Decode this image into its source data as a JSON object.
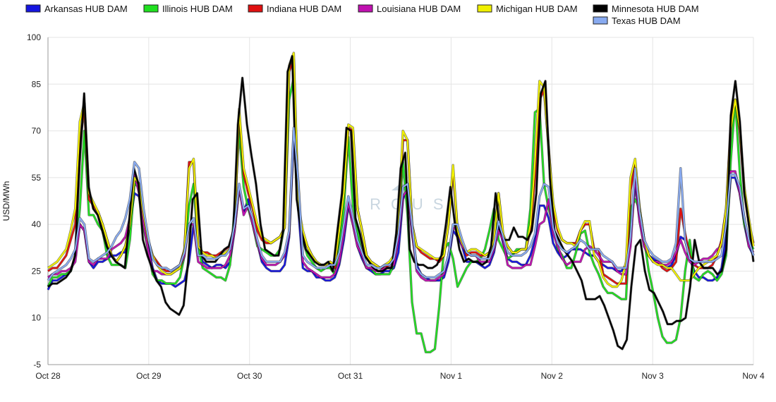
{
  "chart_data": {
    "type": "line",
    "title": "",
    "xlabel": "",
    "ylabel": "USD/MWh",
    "ylim": [
      -5,
      100
    ],
    "yticks": [
      -5,
      10,
      25,
      40,
      55,
      70,
      85,
      100
    ],
    "xticks": [
      "Oct 28",
      "Oct 29",
      "Oct 30",
      "Oct 31",
      "Nov 1",
      "Nov 2",
      "Nov 3",
      "Nov 4"
    ],
    "grid": true,
    "legend_position": "top",
    "watermark": "ARCUS",
    "series": [
      {
        "name": "Arkansas HUB DAM",
        "color": "#1515e0",
        "values": [
          19,
          22,
          22,
          23,
          24,
          25,
          30,
          40,
          38,
          28,
          26,
          28,
          28,
          29,
          30,
          30,
          31,
          31,
          40,
          50,
          49,
          40,
          33,
          26,
          22,
          21,
          21,
          21,
          20,
          21,
          22,
          28,
          40,
          32,
          28,
          27,
          26,
          27,
          27,
          26,
          28,
          38,
          52,
          44,
          48,
          40,
          34,
          28,
          26,
          25,
          25,
          25,
          27,
          36,
          68,
          45,
          26,
          25,
          25,
          23,
          23,
          22,
          22,
          23,
          27,
          35,
          46,
          40,
          33,
          29,
          26,
          25,
          24,
          24,
          25,
          25,
          26,
          31,
          48,
          52,
          37,
          27,
          24,
          23,
          22,
          22,
          22,
          23,
          28,
          38,
          36,
          33,
          28,
          28,
          28,
          27,
          26,
          27,
          31,
          40,
          34,
          29,
          28,
          28,
          27,
          27,
          30,
          35,
          46,
          46,
          42,
          34,
          31,
          29,
          30,
          32,
          32,
          32,
          31,
          30,
          30,
          28,
          27,
          26,
          26,
          25,
          25,
          27,
          37,
          53,
          41,
          33,
          30,
          29,
          28,
          27,
          26,
          27,
          30,
          36,
          35,
          29,
          25,
          23,
          23,
          22,
          22,
          23,
          26,
          36,
          55,
          55,
          50,
          40,
          33,
          30
        ]
      },
      {
        "name": "Illinois HUB DAM",
        "color": "#20e020",
        "values": [
          20,
          23,
          23,
          24,
          24,
          25,
          30,
          45,
          70,
          43,
          43,
          40,
          38,
          30,
          27,
          27,
          27,
          26,
          35,
          53,
          52,
          39,
          32,
          24,
          22,
          22,
          21,
          21,
          21,
          23,
          30,
          46,
          53,
          33,
          26,
          25,
          24,
          23,
          23,
          22,
          27,
          45,
          70,
          52,
          45,
          40,
          33,
          32,
          31,
          30,
          30,
          32,
          40,
          80,
          87,
          45,
          35,
          30,
          28,
          26,
          25,
          26,
          26,
          24,
          33,
          45,
          68,
          46,
          38,
          30,
          26,
          26,
          24,
          24,
          24,
          24,
          27,
          40,
          60,
          43,
          15,
          5,
          5,
          -1,
          -1,
          0,
          14,
          32,
          34,
          29,
          20,
          23,
          26,
          28,
          28,
          29,
          32,
          38,
          45,
          35,
          32,
          29,
          30,
          32,
          32,
          32,
          45,
          76,
          77,
          53,
          45,
          40,
          32,
          30,
          26,
          26,
          31,
          37,
          38,
          31,
          27,
          24,
          20,
          18,
          18,
          17,
          16,
          16,
          45,
          48,
          45,
          35,
          25,
          18,
          10,
          4,
          2,
          2,
          3,
          10,
          25,
          35,
          23,
          22,
          24,
          25,
          24,
          22,
          24,
          30,
          60,
          80,
          57,
          40,
          35,
          32
        ]
      },
      {
        "name": "Indiana HUB DAM",
        "color": "#e01010",
        "values": [
          25,
          26,
          26,
          28,
          30,
          35,
          40,
          66,
          77,
          48,
          46,
          44,
          40,
          35,
          30,
          28,
          30,
          33,
          40,
          55,
          53,
          43,
          35,
          30,
          28,
          26,
          25,
          25,
          26,
          27,
          32,
          60,
          60,
          33,
          31,
          31,
          30,
          30,
          31,
          32,
          33,
          40,
          76,
          56,
          50,
          45,
          38,
          35,
          34,
          34,
          35,
          36,
          39,
          89,
          93,
          45,
          37,
          33,
          30,
          28,
          27,
          27,
          28,
          26,
          38,
          50,
          71,
          70,
          45,
          38,
          30,
          28,
          27,
          26,
          26,
          27,
          29,
          40,
          67,
          67,
          40,
          33,
          31,
          30,
          29,
          29,
          28,
          30,
          40,
          57,
          38,
          34,
          30,
          31,
          31,
          30,
          30,
          31,
          35,
          50,
          36,
          33,
          31,
          31,
          32,
          32,
          38,
          55,
          80,
          83,
          65,
          45,
          38,
          35,
          34,
          34,
          34,
          38,
          40,
          40,
          32,
          32,
          24,
          23,
          22,
          21,
          21,
          21,
          51,
          59,
          45,
          35,
          30,
          28,
          28,
          26,
          25,
          26,
          28,
          45,
          37,
          30,
          27,
          26,
          26,
          26,
          27,
          30,
          35,
          45,
          72,
          80,
          70,
          50,
          40,
          34
        ]
      },
      {
        "name": "Louisiana HUB DAM",
        "color": "#c010b0",
        "values": [
          23,
          24,
          24,
          25,
          25,
          26,
          28,
          40,
          38,
          28,
          27,
          29,
          29,
          29,
          32,
          33,
          34,
          36,
          42,
          56,
          50,
          40,
          32,
          25,
          25,
          24,
          24,
          24,
          25,
          26,
          30,
          40,
          40,
          28,
          27,
          26,
          26,
          26,
          26,
          27,
          30,
          38,
          52,
          43,
          46,
          40,
          34,
          29,
          27,
          27,
          27,
          28,
          30,
          37,
          70,
          53,
          28,
          26,
          25,
          24,
          23,
          23,
          23,
          24,
          28,
          37,
          47,
          40,
          33,
          30,
          26,
          26,
          25,
          25,
          26,
          26,
          27,
          35,
          49,
          51,
          38,
          25,
          23,
          22,
          22,
          22,
          23,
          24,
          30,
          39,
          38,
          33,
          31,
          30,
          30,
          28,
          28,
          28,
          32,
          38,
          35,
          27,
          26,
          26,
          26,
          27,
          27,
          33,
          40,
          41,
          48,
          37,
          33,
          29,
          27,
          28,
          28,
          28,
          32,
          33,
          32,
          30,
          28,
          28,
          28,
          25,
          24,
          24,
          33,
          55,
          41,
          33,
          30,
          28,
          28,
          27,
          27,
          28,
          31,
          35,
          31,
          28,
          27,
          28,
          29,
          29,
          30,
          32,
          33,
          40,
          57,
          57,
          50,
          42,
          33,
          31
        ]
      },
      {
        "name": "Michigan HUB DAM",
        "color": "#f0f000",
        "values": [
          26,
          27,
          28,
          30,
          32,
          38,
          45,
          73,
          79,
          50,
          47,
          44,
          40,
          35,
          30,
          28,
          30,
          33,
          40,
          55,
          53,
          43,
          35,
          30,
          27,
          25,
          24,
          24,
          25,
          26,
          32,
          58,
          61,
          33,
          31,
          30,
          30,
          29,
          30,
          31,
          32,
          40,
          77,
          58,
          52,
          46,
          40,
          36,
          35,
          34,
          35,
          36,
          39,
          91,
          95,
          46,
          38,
          33,
          30,
          28,
          27,
          27,
          28,
          27,
          38,
          50,
          72,
          71,
          45,
          38,
          30,
          28,
          27,
          26,
          27,
          28,
          30,
          42,
          70,
          67,
          40,
          33,
          32,
          31,
          30,
          29,
          29,
          30,
          40,
          59,
          38,
          34,
          31,
          32,
          32,
          31,
          30,
          31,
          35,
          50,
          37,
          33,
          31,
          31,
          32,
          32,
          40,
          60,
          86,
          84,
          64,
          47,
          39,
          35,
          34,
          34,
          33,
          38,
          41,
          41,
          30,
          28,
          23,
          21,
          20,
          20,
          22,
          28,
          55,
          61,
          45,
          35,
          30,
          28,
          27,
          27,
          26,
          26,
          24,
          22,
          22,
          22,
          24,
          26,
          27,
          28,
          29,
          30,
          34,
          45,
          70,
          80,
          71,
          52,
          42,
          33
        ]
      },
      {
        "name": "Minnesota HUB DAM",
        "color": "#000000",
        "values": [
          20,
          21,
          21,
          22,
          23,
          25,
          30,
          60,
          82,
          52,
          45,
          43,
          38,
          33,
          30,
          28,
          27,
          26,
          42,
          58,
          53,
          35,
          30,
          26,
          22,
          20,
          15,
          13,
          12,
          11,
          14,
          28,
          48,
          50,
          30,
          28,
          28,
          28,
          30,
          32,
          33,
          38,
          72,
          87,
          72,
          62,
          53,
          40,
          32,
          31,
          30,
          30,
          38,
          89,
          94,
          48,
          38,
          32,
          30,
          28,
          27,
          27,
          28,
          25,
          38,
          50,
          71,
          70,
          42,
          37,
          30,
          28,
          26,
          25,
          25,
          26,
          26,
          37,
          58,
          63,
          32,
          28,
          27,
          27,
          26,
          26,
          27,
          30,
          40,
          52,
          40,
          32,
          28,
          29,
          28,
          28,
          27,
          28,
          33,
          50,
          38,
          35,
          35,
          39,
          36,
          36,
          35,
          38,
          50,
          82,
          86,
          55,
          38,
          35,
          32,
          30,
          28,
          25,
          22,
          16,
          16,
          16,
          17,
          14,
          10,
          6,
          1,
          0,
          3,
          20,
          33,
          35,
          25,
          19,
          18,
          15,
          12,
          8,
          8,
          9,
          9,
          10,
          20,
          35,
          28,
          26,
          26,
          26,
          24,
          25,
          32,
          75,
          86,
          73,
          50,
          40,
          28
        ]
      },
      {
        "name": "Texas HUB DAM",
        "color": "#88aaf0",
        "values": [
          22,
          24,
          25,
          26,
          27,
          29,
          32,
          42,
          40,
          29,
          28,
          29,
          30,
          31,
          33,
          36,
          38,
          42,
          48,
          60,
          58,
          45,
          36,
          29,
          27,
          26,
          26,
          25,
          26,
          27,
          31,
          40,
          42,
          30,
          30,
          29,
          29,
          29,
          30,
          30,
          32,
          40,
          53,
          45,
          46,
          42,
          35,
          30,
          28,
          28,
          28,
          28,
          31,
          38,
          71,
          54,
          30,
          28,
          27,
          26,
          26,
          26,
          27,
          27,
          31,
          40,
          49,
          42,
          35,
          31,
          27,
          27,
          26,
          26,
          27,
          27,
          29,
          37,
          52,
          53,
          40,
          26,
          24,
          23,
          23,
          23,
          24,
          25,
          30,
          40,
          40,
          35,
          31,
          30,
          30,
          29,
          29,
          29,
          33,
          41,
          36,
          31,
          30,
          30,
          30,
          31,
          33,
          37,
          49,
          53,
          52,
          39,
          34,
          32,
          31,
          32,
          33,
          35,
          34,
          32,
          32,
          32,
          30,
          29,
          28,
          26,
          26,
          26,
          36,
          58,
          44,
          35,
          32,
          30,
          29,
          28,
          28,
          29,
          34,
          58,
          35,
          29,
          28,
          28,
          28,
          28,
          28,
          29,
          30,
          40,
          56,
          56,
          52,
          42,
          35,
          30
        ]
      }
    ]
  }
}
